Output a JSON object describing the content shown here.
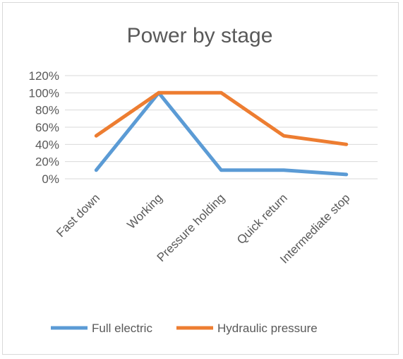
{
  "chart_data": {
    "type": "line",
    "title": "Power by stage",
    "categories": [
      "Fast down",
      "Working",
      "Pressure holding",
      "Quick return",
      "Intermediate stop"
    ],
    "series": [
      {
        "name": "Full electric",
        "values": [
          10,
          100,
          10,
          10,
          5
        ],
        "color": "#5b9bd5"
      },
      {
        "name": "Hydraulic pressure",
        "values": [
          50,
          100,
          100,
          50,
          40
        ],
        "color": "#ed7d31"
      }
    ],
    "y_ticks": [
      "0%",
      "20%",
      "40%",
      "60%",
      "80%",
      "100%",
      "120%"
    ],
    "ylim": [
      0,
      120
    ],
    "grid": true,
    "legend_position": "bottom",
    "xlabel": "",
    "ylabel": ""
  }
}
